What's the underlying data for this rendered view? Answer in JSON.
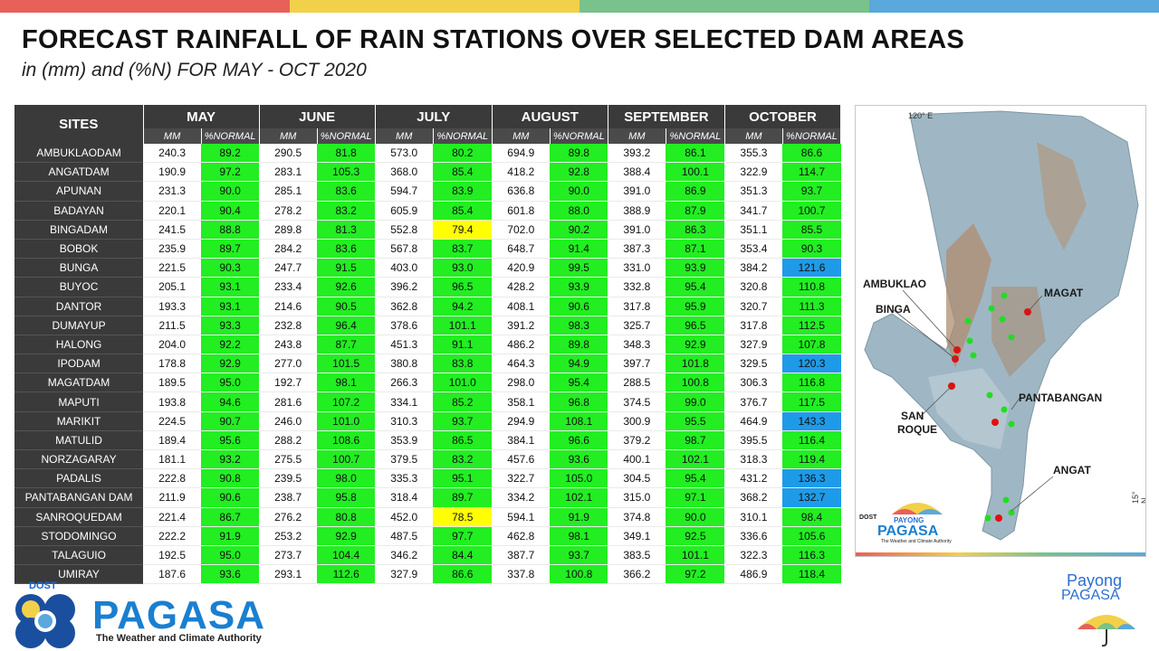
{
  "top_bar_colors": [
    "#e8605a",
    "#f2d049",
    "#78c28b",
    "#5aa8dc"
  ],
  "header": {
    "title": "FORECAST RAINFALL OF RAIN STATIONS OVER SELECTED DAM AREAS",
    "subtitle": "in (mm) and (%N) FOR MAY - OCT 2020"
  },
  "table": {
    "sites_header": "SITES",
    "months": [
      "MAY",
      "JUNE",
      "JULY",
      "AUGUST",
      "SEPTEMBER",
      "OCTOBER"
    ],
    "sub_mm": "MM",
    "sub_pct": "%NORMAL",
    "rows": [
      {
        "site": "AMBUKLAODAM",
        "v": [
          [
            "240.3",
            "89.2"
          ],
          [
            "290.5",
            "81.8"
          ],
          [
            "573.0",
            "80.2"
          ],
          [
            "694.9",
            "89.8"
          ],
          [
            "393.2",
            "86.1"
          ],
          [
            "355.3",
            "86.6"
          ]
        ]
      },
      {
        "site": "ANGATDAM",
        "v": [
          [
            "190.9",
            "97.2"
          ],
          [
            "283.1",
            "105.3"
          ],
          [
            "368.0",
            "85.4"
          ],
          [
            "418.2",
            "92.8"
          ],
          [
            "388.4",
            "100.1"
          ],
          [
            "322.9",
            "114.7"
          ]
        ]
      },
      {
        "site": "APUNAN",
        "v": [
          [
            "231.3",
            "90.0"
          ],
          [
            "285.1",
            "83.6"
          ],
          [
            "594.7",
            "83.9"
          ],
          [
            "636.8",
            "90.0"
          ],
          [
            "391.0",
            "86.9"
          ],
          [
            "351.3",
            "93.7"
          ]
        ]
      },
      {
        "site": "BADAYAN",
        "v": [
          [
            "220.1",
            "90.4"
          ],
          [
            "278.2",
            "83.2"
          ],
          [
            "605.9",
            "85.4"
          ],
          [
            "601.8",
            "88.0"
          ],
          [
            "388.9",
            "87.9"
          ],
          [
            "341.7",
            "100.7"
          ]
        ]
      },
      {
        "site": "BINGADAM",
        "v": [
          [
            "241.5",
            "88.8"
          ],
          [
            "289.8",
            "81.3"
          ],
          [
            "552.8",
            "79.4"
          ],
          [
            "702.0",
            "90.2"
          ],
          [
            "391.0",
            "86.3"
          ],
          [
            "351.1",
            "85.5"
          ]
        ]
      },
      {
        "site": "BOBOK",
        "v": [
          [
            "235.9",
            "89.7"
          ],
          [
            "284.2",
            "83.6"
          ],
          [
            "567.8",
            "83.7"
          ],
          [
            "648.7",
            "91.4"
          ],
          [
            "387.3",
            "87.1"
          ],
          [
            "353.4",
            "90.3"
          ]
        ]
      },
      {
        "site": "BUNGA",
        "v": [
          [
            "221.5",
            "90.3"
          ],
          [
            "247.7",
            "91.5"
          ],
          [
            "403.0",
            "93.0"
          ],
          [
            "420.9",
            "99.5"
          ],
          [
            "331.0",
            "93.9"
          ],
          [
            "384.2",
            "121.6"
          ]
        ]
      },
      {
        "site": "BUYOC",
        "v": [
          [
            "205.1",
            "93.1"
          ],
          [
            "233.4",
            "92.6"
          ],
          [
            "396.2",
            "96.5"
          ],
          [
            "428.2",
            "93.9"
          ],
          [
            "332.8",
            "95.4"
          ],
          [
            "320.8",
            "110.8"
          ]
        ]
      },
      {
        "site": "DANTOR",
        "v": [
          [
            "193.3",
            "93.1"
          ],
          [
            "214.6",
            "90.5"
          ],
          [
            "362.8",
            "94.2"
          ],
          [
            "408.1",
            "90.6"
          ],
          [
            "317.8",
            "95.9"
          ],
          [
            "320.7",
            "111.3"
          ]
        ]
      },
      {
        "site": "DUMAYUP",
        "v": [
          [
            "211.5",
            "93.3"
          ],
          [
            "232.8",
            "96.4"
          ],
          [
            "378.6",
            "101.1"
          ],
          [
            "391.2",
            "98.3"
          ],
          [
            "325.7",
            "96.5"
          ],
          [
            "317.8",
            "112.5"
          ]
        ]
      },
      {
        "site": "HALONG",
        "v": [
          [
            "204.0",
            "92.2"
          ],
          [
            "243.8",
            "87.7"
          ],
          [
            "451.3",
            "91.1"
          ],
          [
            "486.2",
            "89.8"
          ],
          [
            "348.3",
            "92.9"
          ],
          [
            "327.9",
            "107.8"
          ]
        ]
      },
      {
        "site": "IPODAM",
        "v": [
          [
            "178.8",
            "92.9"
          ],
          [
            "277.0",
            "101.5"
          ],
          [
            "380.8",
            "83.8"
          ],
          [
            "464.3",
            "94.9"
          ],
          [
            "397.7",
            "101.8"
          ],
          [
            "329.5",
            "120.3"
          ]
        ]
      },
      {
        "site": "MAGATDAM",
        "v": [
          [
            "189.5",
            "95.0"
          ],
          [
            "192.7",
            "98.1"
          ],
          [
            "266.3",
            "101.0"
          ],
          [
            "298.0",
            "95.4"
          ],
          [
            "288.5",
            "100.8"
          ],
          [
            "306.3",
            "116.8"
          ]
        ]
      },
      {
        "site": "MAPUTI",
        "v": [
          [
            "193.8",
            "94.6"
          ],
          [
            "281.6",
            "107.2"
          ],
          [
            "334.1",
            "85.2"
          ],
          [
            "358.1",
            "96.8"
          ],
          [
            "374.5",
            "99.0"
          ],
          [
            "376.7",
            "117.5"
          ]
        ]
      },
      {
        "site": "MARIKIT",
        "v": [
          [
            "224.5",
            "90.7"
          ],
          [
            "246.0",
            "101.0"
          ],
          [
            "310.3",
            "93.7"
          ],
          [
            "294.9",
            "108.1"
          ],
          [
            "300.9",
            "95.5"
          ],
          [
            "464.9",
            "143.3"
          ]
        ]
      },
      {
        "site": "MATULID",
        "v": [
          [
            "189.4",
            "95.6"
          ],
          [
            "288.2",
            "108.6"
          ],
          [
            "353.9",
            "86.5"
          ],
          [
            "384.1",
            "96.6"
          ],
          [
            "379.2",
            "98.7"
          ],
          [
            "395.5",
            "116.4"
          ]
        ]
      },
      {
        "site": "NORZAGARAY",
        "v": [
          [
            "181.1",
            "93.2"
          ],
          [
            "275.5",
            "100.7"
          ],
          [
            "379.5",
            "83.2"
          ],
          [
            "457.6",
            "93.6"
          ],
          [
            "400.1",
            "102.1"
          ],
          [
            "318.3",
            "119.4"
          ]
        ]
      },
      {
        "site": "PADALIS",
        "v": [
          [
            "222.8",
            "90.8"
          ],
          [
            "239.5",
            "98.0"
          ],
          [
            "335.3",
            "95.1"
          ],
          [
            "322.7",
            "105.0"
          ],
          [
            "304.5",
            "95.4"
          ],
          [
            "431.2",
            "136.3"
          ]
        ]
      },
      {
        "site": "PANTABANGAN DAM",
        "v": [
          [
            "211.9",
            "90.6"
          ],
          [
            "238.7",
            "95.8"
          ],
          [
            "318.4",
            "89.7"
          ],
          [
            "334.2",
            "102.1"
          ],
          [
            "315.0",
            "97.1"
          ],
          [
            "368.2",
            "132.7"
          ]
        ]
      },
      {
        "site": "SANROQUEDAM",
        "v": [
          [
            "221.4",
            "86.7"
          ],
          [
            "276.2",
            "80.8"
          ],
          [
            "452.0",
            "78.5"
          ],
          [
            "594.1",
            "91.9"
          ],
          [
            "374.8",
            "90.0"
          ],
          [
            "310.1",
            "98.4"
          ]
        ]
      },
      {
        "site": "STODOMINGO",
        "v": [
          [
            "222.2",
            "91.9"
          ],
          [
            "253.2",
            "92.9"
          ],
          [
            "487.5",
            "97.7"
          ],
          [
            "462.8",
            "98.1"
          ],
          [
            "349.1",
            "92.5"
          ],
          [
            "336.6",
            "105.6"
          ]
        ]
      },
      {
        "site": "TALAGUIO",
        "v": [
          [
            "192.5",
            "95.0"
          ],
          [
            "273.7",
            "104.4"
          ],
          [
            "346.2",
            "84.4"
          ],
          [
            "387.7",
            "93.7"
          ],
          [
            "383.5",
            "101.1"
          ],
          [
            "322.3",
            "116.3"
          ]
        ]
      },
      {
        "site": "UMIRAY",
        "v": [
          [
            "187.6",
            "93.6"
          ],
          [
            "293.1",
            "112.6"
          ],
          [
            "327.9",
            "86.6"
          ],
          [
            "337.8",
            "100.8"
          ],
          [
            "366.2",
            "97.2"
          ],
          [
            "486.9",
            "118.4"
          ]
        ]
      }
    ],
    "colors": {
      "normal": "#22ee22",
      "below": "#ffff00",
      "above": "#1e9be8",
      "header": "#3a3a3a"
    }
  },
  "map": {
    "coord_top": "120° E",
    "coord_right": "15° N",
    "labels": {
      "ambuklao": "AMBUKLAO",
      "binga": "BINGA",
      "magat": "MAGAT",
      "pantabangan": "PANTABANGAN",
      "san": "SAN",
      "roque": "ROQUE",
      "angat": "ANGAT"
    },
    "inset_logo": {
      "dost": "DOST",
      "payong": "PAYONG",
      "pagasa": "PAGASA",
      "tagline": "The Weather and Climate Authority"
    }
  },
  "footer": {
    "dost": "DOST",
    "pagasa": "PAGASA",
    "tagline": "The Weather and Climate Authority",
    "payong_1": "Payong",
    "payong_2": "PAGASA"
  }
}
